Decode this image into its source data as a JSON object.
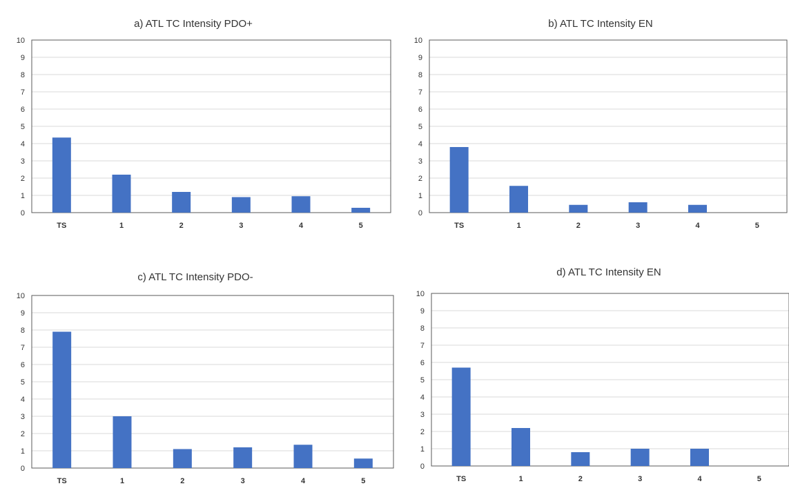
{
  "chart_data": [
    {
      "type": "bar",
      "title": "a) ATL TC Intensity PDO+",
      "categories": [
        "TS",
        "1",
        "2",
        "3",
        "4",
        "5"
      ],
      "values": [
        4.35,
        2.2,
        1.2,
        0.9,
        0.95,
        0.28
      ],
      "ylim": [
        0,
        10
      ],
      "yticks": [
        "0",
        "1",
        "2",
        "3",
        "4",
        "5",
        "6",
        "7",
        "8",
        "9",
        "10"
      ],
      "xlabel": "",
      "ylabel": "",
      "grid": true,
      "bar_color": "#4472C4"
    },
    {
      "type": "bar",
      "title": "b) ATL TC Intensity EN",
      "categories": [
        "TS",
        "1",
        "2",
        "3",
        "4",
        "5"
      ],
      "values": [
        3.8,
        1.55,
        0.45,
        0.6,
        0.45,
        0
      ],
      "ylim": [
        0,
        10
      ],
      "yticks": [
        "0",
        "1",
        "2",
        "3",
        "4",
        "5",
        "6",
        "7",
        "8",
        "9",
        "10"
      ],
      "xlabel": "",
      "ylabel": "",
      "grid": true,
      "bar_color": "#4472C4"
    },
    {
      "type": "bar",
      "title": "c) ATL TC Intensity PDO-",
      "categories": [
        "TS",
        "1",
        "2",
        "3",
        "4",
        "5"
      ],
      "values": [
        7.9,
        3.0,
        1.1,
        1.2,
        1.35,
        0.55
      ],
      "ylim": [
        0,
        10
      ],
      "yticks": [
        "0",
        "1",
        "2",
        "3",
        "4",
        "5",
        "6",
        "7",
        "8",
        "9",
        "10"
      ],
      "xlabel": "",
      "ylabel": "",
      "grid": true,
      "bar_color": "#4472C4"
    },
    {
      "type": "bar",
      "title": "d) ATL TC Intensity EN",
      "categories": [
        "TS",
        "1",
        "2",
        "3",
        "4",
        "5"
      ],
      "values": [
        5.7,
        2.2,
        0.8,
        1.0,
        1.0,
        0
      ],
      "ylim": [
        0,
        10
      ],
      "yticks": [
        "0",
        "1",
        "2",
        "3",
        "4",
        "5",
        "6",
        "7",
        "8",
        "9",
        "10"
      ],
      "xlabel": "",
      "ylabel": "",
      "grid": true,
      "bar_color": "#4472C4"
    }
  ]
}
